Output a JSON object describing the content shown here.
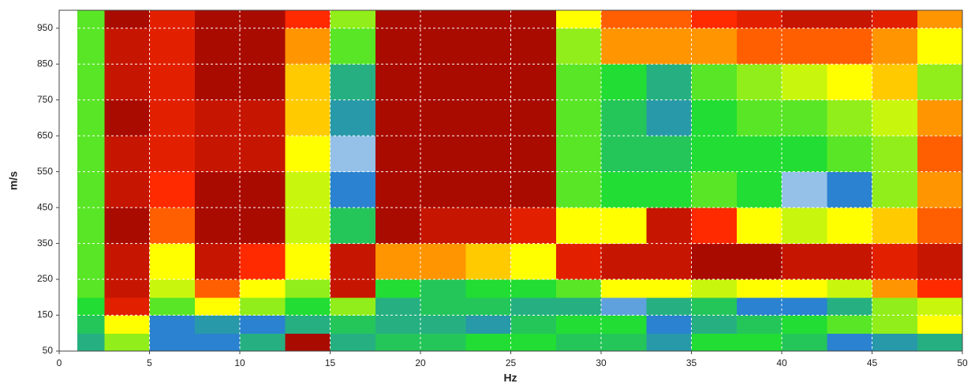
{
  "chart_data": {
    "type": "heatmap",
    "xlabel": "Hz",
    "ylabel": "m/s",
    "xlim": [
      0,
      50
    ],
    "ylim": [
      50,
      1000
    ],
    "xticks": [
      0,
      5,
      10,
      15,
      20,
      25,
      30,
      35,
      40,
      45,
      50
    ],
    "yticks": [
      50,
      150,
      250,
      350,
      450,
      550,
      650,
      750,
      850,
      950
    ],
    "grid": true,
    "zlim": [
      0,
      1
    ],
    "colorscale": [
      "#ffffff",
      "#2a82d0",
      "#22dd33",
      "#ffff00",
      "#ff2a00",
      "#8c0000"
    ],
    "x_edges": [
      1,
      2.5,
      5,
      7.5,
      10,
      12.5,
      15,
      17.5,
      20,
      22.5,
      25,
      27.5,
      30,
      32.5,
      35,
      37.5,
      40,
      42.5,
      45,
      47.5,
      50
    ],
    "y_edges": [
      50,
      100,
      150,
      200,
      250,
      350,
      450,
      550,
      650,
      750,
      850,
      950,
      1000
    ],
    "z": [
      [
        0.3,
        0.5,
        0.2,
        0.2,
        0.3,
        0.95,
        0.3,
        0.35,
        0.35,
        0.4,
        0.4,
        0.35,
        0.35,
        0.25,
        0.4,
        0.4,
        0.35,
        0.2,
        0.25,
        0.3
      ],
      [
        0.35,
        0.6,
        0.2,
        0.25,
        0.2,
        0.3,
        0.35,
        0.3,
        0.3,
        0.25,
        0.35,
        0.4,
        0.4,
        0.2,
        0.3,
        0.35,
        0.4,
        0.45,
        0.5,
        0.6
      ],
      [
        0.4,
        0.85,
        0.45,
        0.6,
        0.5,
        0.4,
        0.5,
        0.3,
        0.35,
        0.35,
        0.3,
        0.3,
        0.15,
        0.3,
        0.35,
        0.2,
        0.2,
        0.3,
        0.5,
        0.55
      ],
      [
        0.45,
        0.9,
        0.55,
        0.75,
        0.6,
        0.5,
        0.9,
        0.4,
        0.35,
        0.4,
        0.4,
        0.45,
        0.6,
        0.6,
        0.55,
        0.6,
        0.6,
        0.55,
        0.7,
        0.8
      ],
      [
        0.45,
        0.9,
        0.6,
        0.9,
        0.8,
        0.6,
        0.9,
        0.7,
        0.7,
        0.65,
        0.6,
        0.85,
        0.9,
        0.9,
        0.95,
        0.95,
        0.9,
        0.9,
        0.85,
        0.9
      ],
      [
        0.45,
        0.95,
        0.75,
        0.95,
        0.95,
        0.55,
        0.35,
        0.95,
        0.9,
        0.9,
        0.85,
        0.6,
        0.6,
        0.9,
        0.8,
        0.6,
        0.55,
        0.6,
        0.65,
        0.75
      ],
      [
        0.45,
        0.9,
        0.8,
        0.95,
        0.95,
        0.55,
        0.2,
        0.95,
        0.95,
        0.95,
        0.95,
        0.45,
        0.4,
        0.4,
        0.45,
        0.4,
        0.1,
        0.2,
        0.5,
        0.7
      ],
      [
        0.45,
        0.9,
        0.85,
        0.9,
        0.9,
        0.6,
        0.1,
        0.95,
        0.95,
        0.95,
        0.95,
        0.45,
        0.35,
        0.35,
        0.4,
        0.4,
        0.4,
        0.45,
        0.5,
        0.75
      ],
      [
        0.45,
        0.95,
        0.85,
        0.9,
        0.9,
        0.65,
        0.25,
        0.95,
        0.95,
        0.95,
        0.95,
        0.45,
        0.35,
        0.25,
        0.4,
        0.45,
        0.45,
        0.5,
        0.55,
        0.7
      ],
      [
        0.45,
        0.9,
        0.85,
        0.95,
        0.95,
        0.65,
        0.3,
        0.95,
        0.95,
        0.95,
        0.95,
        0.45,
        0.4,
        0.3,
        0.45,
        0.5,
        0.55,
        0.6,
        0.65,
        0.5
      ],
      [
        0.45,
        0.9,
        0.85,
        0.95,
        0.95,
        0.7,
        0.45,
        0.95,
        0.95,
        0.95,
        0.95,
        0.5,
        0.7,
        0.7,
        0.7,
        0.75,
        0.75,
        0.75,
        0.7,
        0.6
      ],
      [
        0.45,
        0.95,
        0.85,
        0.95,
        0.95,
        0.8,
        0.5,
        0.95,
        0.95,
        0.95,
        0.95,
        0.6,
        0.75,
        0.75,
        0.8,
        0.85,
        0.9,
        0.9,
        0.85,
        0.7
      ]
    ]
  }
}
